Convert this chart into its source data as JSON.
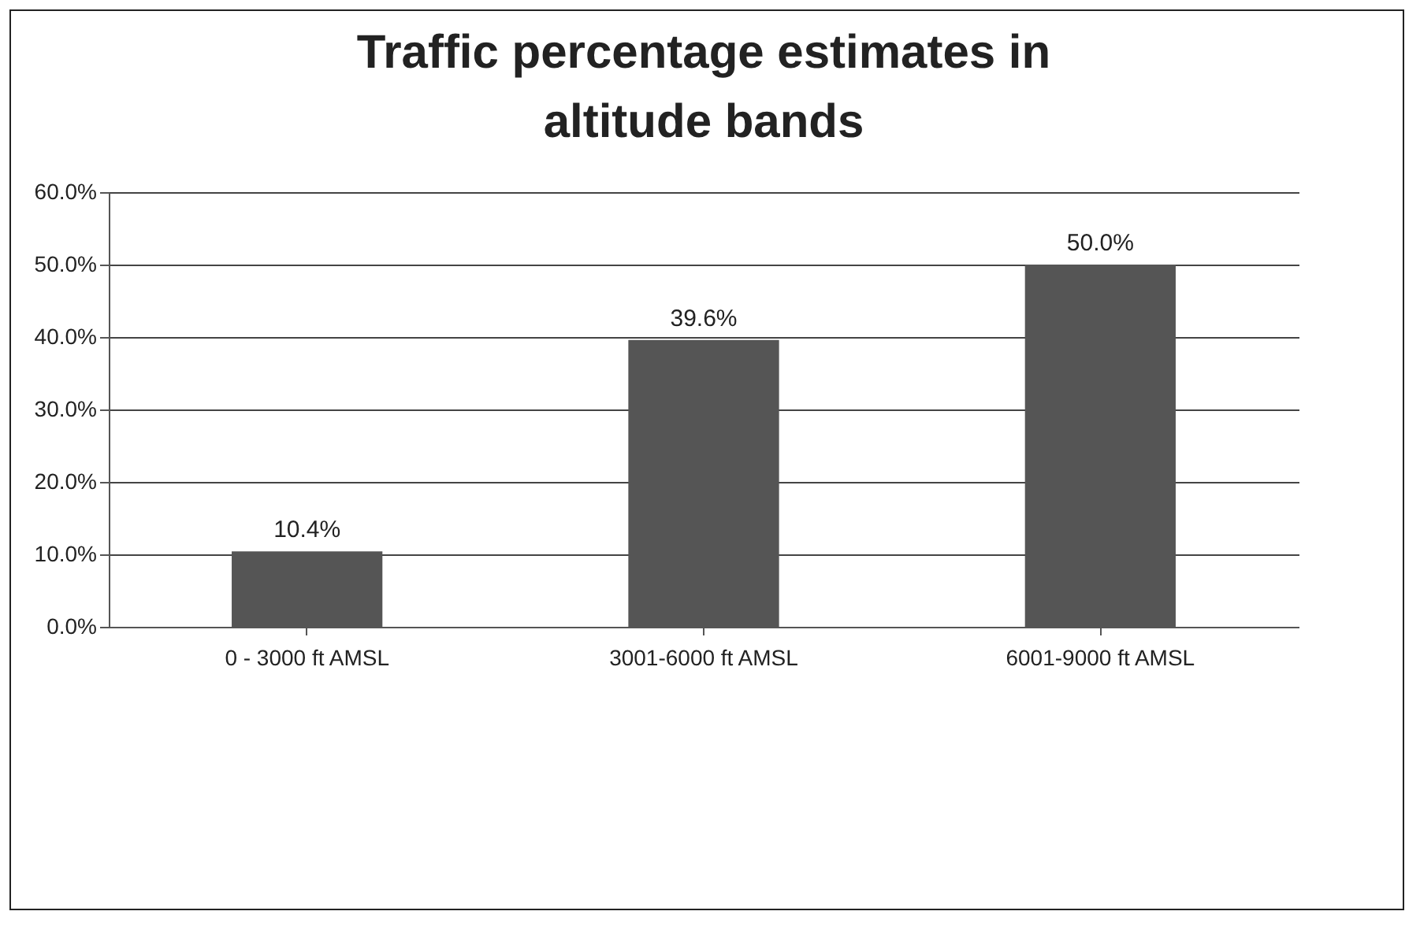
{
  "chart_data": {
    "type": "bar",
    "title": "Traffic percentage estimates in altitude bands",
    "categories": [
      "0 - 3000 ft AMSL",
      "3001-6000 ft AMSL",
      "6001-9000 ft AMSL"
    ],
    "values": [
      10.4,
      39.6,
      50.0
    ],
    "value_labels": [
      "10.4%",
      "39.6%",
      "50.0%"
    ],
    "color": "#555555",
    "ylim": [
      0,
      60
    ],
    "yticks": [
      {
        "value": 0,
        "label": "0.0%"
      },
      {
        "value": 10,
        "label": "10.0%"
      },
      {
        "value": 20,
        "label": "20.0%"
      },
      {
        "value": 30,
        "label": "30.0%"
      },
      {
        "value": 40,
        "label": "40.0%"
      },
      {
        "value": 50,
        "label": "50.0%"
      },
      {
        "value": 60,
        "label": "60.0%"
      }
    ],
    "grid": "y"
  }
}
